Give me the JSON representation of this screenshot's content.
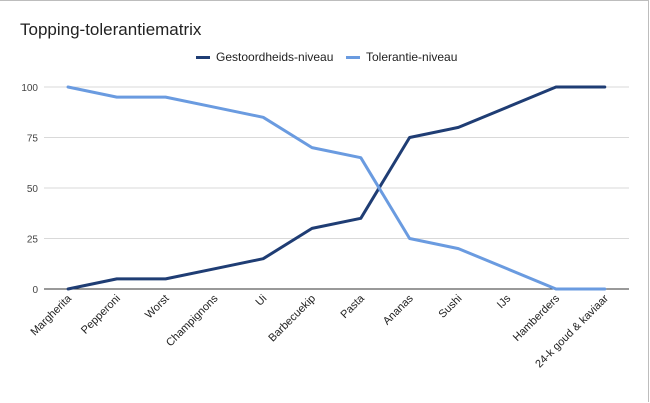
{
  "chart_data": {
    "type": "line",
    "title": "Topping-tolerantiematrix",
    "xlabel": "",
    "ylabel": "",
    "categories": [
      "Margherita",
      "Pepperoni",
      "Worst",
      "Champignons",
      "Ui",
      "Barbecuekip",
      "Pasta",
      "Ananas",
      "Sushi",
      "IJs",
      "Hamberders",
      "24-k goud & kaviaar"
    ],
    "series": [
      {
        "name": "Gestoordheids-niveau",
        "color": "#1f3d74",
        "values": [
          0,
          5,
          5,
          10,
          15,
          30,
          35,
          75,
          80,
          90,
          100,
          100
        ]
      },
      {
        "name": "Tolerantie-niveau",
        "color": "#6a9be0",
        "values": [
          100,
          95,
          95,
          90,
          85,
          70,
          65,
          25,
          20,
          10,
          0,
          0
        ]
      }
    ],
    "ylim": [
      0,
      100
    ],
    "yticks": [
      0,
      25,
      50,
      75,
      100
    ],
    "grid": true,
    "legend_position": "top-center"
  }
}
